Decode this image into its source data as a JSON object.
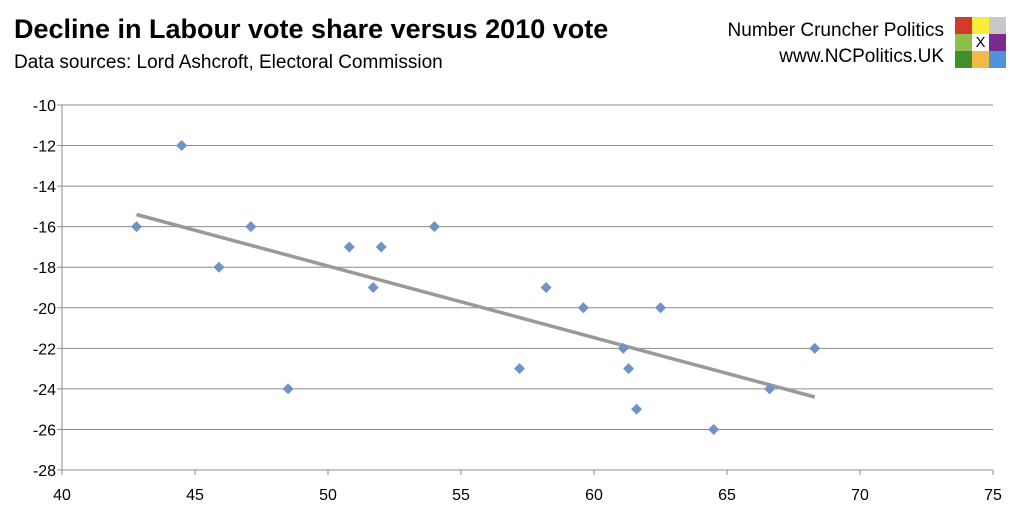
{
  "chart_data": {
    "type": "scatter",
    "title": "Decline in Labour vote share versus 2010 vote",
    "subtitle": "Data sources: Lord Ashcroft, Electoral Commission",
    "xlabel": "",
    "ylabel": "",
    "xlim": [
      40,
      75
    ],
    "ylim": [
      -28,
      -10
    ],
    "x_ticks": [
      40,
      45,
      50,
      55,
      60,
      65,
      70,
      75
    ],
    "y_ticks": [
      -10,
      -12,
      -14,
      -16,
      -18,
      -20,
      -22,
      -24,
      -26,
      -28
    ],
    "grid": "horizontal",
    "legend": "none",
    "marker": "diamond",
    "marker_color": "#7092c8",
    "trendline_color": "#999999",
    "points": [
      [
        42.8,
        -16
      ],
      [
        44.5,
        -12
      ],
      [
        45.9,
        -18
      ],
      [
        47.1,
        -16
      ],
      [
        48.5,
        -24
      ],
      [
        50.8,
        -17
      ],
      [
        51.7,
        -19
      ],
      [
        52.0,
        -17
      ],
      [
        54.0,
        -16
      ],
      [
        57.2,
        -23
      ],
      [
        58.2,
        -19
      ],
      [
        59.6,
        -20
      ],
      [
        61.1,
        -22
      ],
      [
        61.3,
        -23
      ],
      [
        61.6,
        -25
      ],
      [
        62.5,
        -20
      ],
      [
        64.5,
        -26
      ],
      [
        66.6,
        -24
      ],
      [
        68.3,
        -22
      ]
    ],
    "trendline": [
      [
        42.8,
        -15.4
      ],
      [
        68.3,
        -24.4
      ]
    ]
  },
  "branding": {
    "name": "Number Cruncher Politics",
    "url": "www.NCPolitics.UK",
    "logo_text": "X",
    "logo_colors": [
      "#d23a2c",
      "#f7ee3a",
      "#c8c8c8",
      "#8fbe4a",
      "#ffffff",
      "#7a2a8e",
      "#3f8f2c",
      "#f2b84a",
      "#4f93de"
    ]
  }
}
